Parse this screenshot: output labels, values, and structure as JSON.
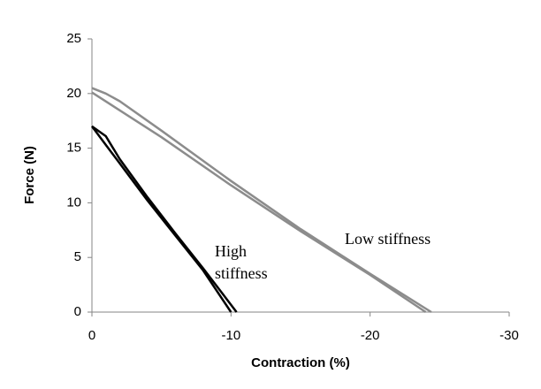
{
  "chart_data": {
    "type": "line",
    "x_label": "Contraction (%)",
    "y_label": "Force (N)",
    "xlim": [
      0,
      -30
    ],
    "xticks": [
      0,
      -10,
      -20,
      -30
    ],
    "ylim": [
      0,
      25
    ],
    "yticks": [
      0,
      5,
      10,
      15,
      20,
      25
    ],
    "grid": false,
    "series": [
      {
        "color": "#000000",
        "x": [
          0,
          -1,
          -2,
          -4,
          -6,
          -8,
          -10.4
        ],
        "values": [
          17,
          16.1,
          14,
          10.5,
          7.2,
          4,
          0
        ]
      },
      {
        "color": "#000000",
        "x": [
          0,
          -1,
          -2,
          -4,
          -6,
          -8,
          -10
        ],
        "values": [
          17,
          15.3,
          13.6,
          10.2,
          7,
          3.8,
          0
        ]
      },
      {
        "color": "#8c8c8c",
        "x": [
          0,
          -1,
          -2,
          -5,
          -10,
          -15,
          -20,
          -24.4
        ],
        "values": [
          20.5,
          20,
          19.3,
          16.6,
          12,
          7.6,
          3.5,
          0
        ]
      },
      {
        "color": "#8c8c8c",
        "x": [
          0,
          -5,
          -10,
          -15,
          -20,
          -24
        ],
        "values": [
          20.1,
          16,
          11.6,
          7.4,
          3.4,
          0
        ]
      }
    ],
    "annotations": [
      "High",
      "stiffness",
      "Low stiffness"
    ]
  }
}
